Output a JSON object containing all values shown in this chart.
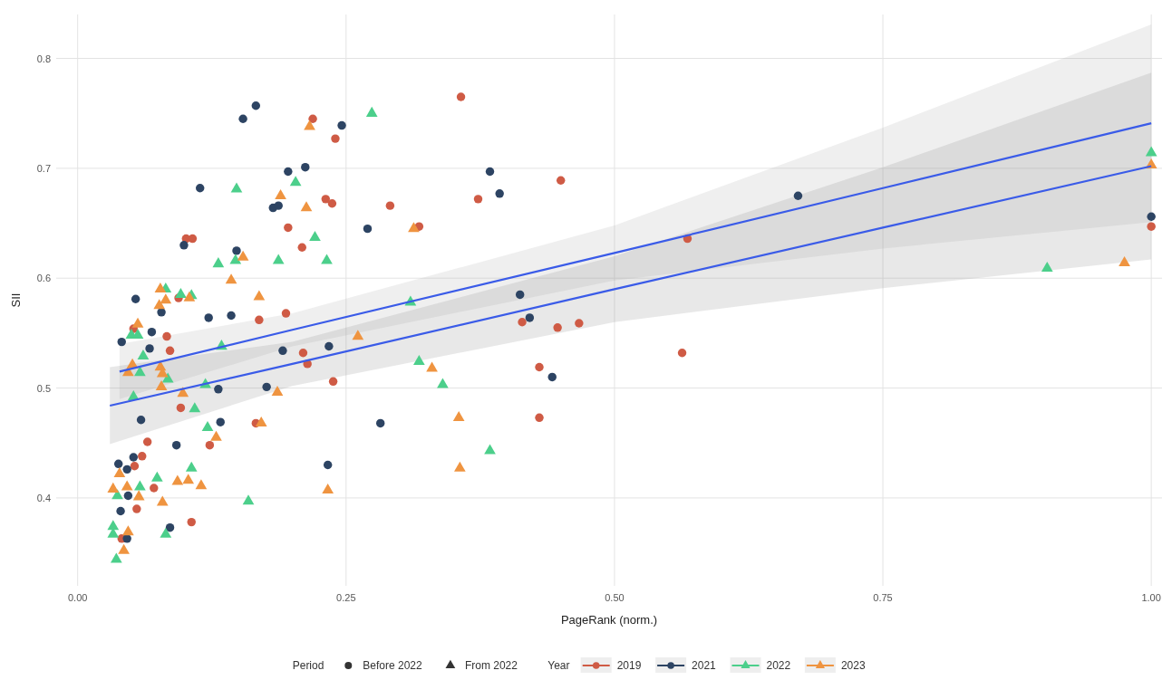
{
  "chart_data": {
    "type": "scatter",
    "xlabel": "PageRank (norm.)",
    "ylabel": "SII",
    "legend_title": "Year",
    "legend": "bottom",
    "grid": true,
    "xlim": [
      -0.02,
      1.01
    ],
    "xticks": [
      {
        "value": 0,
        "label": "0.00"
      },
      {
        "value": 0.25,
        "label": "0.25"
      },
      {
        "value": 0.5,
        "label": "0.50"
      },
      {
        "value": 0.75,
        "label": "0.75"
      },
      {
        "value": 1,
        "label": "1.00"
      }
    ],
    "ylim": [
      0.32,
      0.84
    ],
    "yticks": [
      0.4,
      0.5,
      0.6,
      0.7,
      0.8
    ],
    "annotations": [
      "Period",
      "Before 2022",
      "From 2022"
    ],
    "series": [
      {
        "name": "2019",
        "color": "#cf5b45",
        "marker": "circle",
        "x": [
          0.219,
          0.24,
          0.231,
          0.237,
          0.291,
          0.318,
          0.196,
          0.209,
          0.357,
          0.373,
          0.169,
          0.194,
          0.21,
          0.214,
          0.238,
          0.166,
          0.45,
          0.568,
          1.0,
          0.414,
          0.447,
          0.467,
          0.563,
          0.43,
          0.43,
          0.101,
          0.107,
          0.094,
          0.052,
          0.083,
          0.086,
          0.096,
          0.123,
          0.065,
          0.06,
          0.053,
          0.071,
          0.055,
          0.106,
          0.041
        ],
        "values": [
          0.745,
          0.727,
          0.672,
          0.668,
          0.666,
          0.647,
          0.646,
          0.628,
          0.765,
          0.672,
          0.562,
          0.568,
          0.532,
          0.522,
          0.506,
          0.468,
          0.689,
          0.636,
          0.647,
          0.56,
          0.555,
          0.559,
          0.532,
          0.519,
          0.473,
          0.636,
          0.636,
          0.582,
          0.554,
          0.547,
          0.534,
          0.482,
          0.448,
          0.451,
          0.438,
          0.429,
          0.409,
          0.39,
          0.378,
          0.363
        ]
      },
      {
        "name": "2021",
        "color": "#2d4463",
        "marker": "circle",
        "x": [
          0.166,
          0.246,
          0.196,
          0.212,
          0.182,
          0.187,
          0.27,
          0.384,
          0.393,
          0.191,
          0.234,
          0.176,
          0.282,
          0.233,
          0.671,
          1.0,
          0.412,
          0.421,
          0.442,
          0.154,
          0.114,
          0.099,
          0.148,
          0.054,
          0.078,
          0.122,
          0.143,
          0.069,
          0.041,
          0.067,
          0.131,
          0.059,
          0.133,
          0.092,
          0.038,
          0.052,
          0.046,
          0.047,
          0.04,
          0.086,
          0.046
        ],
        "values": [
          0.757,
          0.739,
          0.697,
          0.701,
          0.664,
          0.666,
          0.645,
          0.697,
          0.677,
          0.534,
          0.538,
          0.501,
          0.468,
          0.43,
          0.675,
          0.656,
          0.585,
          0.564,
          0.51,
          0.745,
          0.682,
          0.63,
          0.625,
          0.581,
          0.569,
          0.564,
          0.566,
          0.551,
          0.542,
          0.536,
          0.499,
          0.471,
          0.469,
          0.448,
          0.431,
          0.437,
          0.426,
          0.402,
          0.388,
          0.373,
          0.363
        ]
      },
      {
        "name": "2022",
        "color": "#4ccf8b",
        "marker": "triangle",
        "x": [
          0.274,
          0.203,
          0.221,
          0.187,
          0.232,
          0.31,
          0.318,
          0.34,
          0.384,
          1.0,
          0.903,
          0.148,
          0.147,
          0.131,
          0.082,
          0.096,
          0.106,
          0.05,
          0.056,
          0.134,
          0.061,
          0.058,
          0.084,
          0.052,
          0.119,
          0.109,
          0.121,
          0.106,
          0.074,
          0.037,
          0.058,
          0.159,
          0.082,
          0.033,
          0.033,
          0.036
        ],
        "values": [
          0.75,
          0.687,
          0.637,
          0.616,
          0.616,
          0.578,
          0.524,
          0.503,
          0.443,
          0.714,
          0.609,
          0.681,
          0.616,
          0.613,
          0.59,
          0.585,
          0.584,
          0.548,
          0.548,
          0.538,
          0.529,
          0.514,
          0.508,
          0.492,
          0.503,
          0.481,
          0.464,
          0.427,
          0.418,
          0.402,
          0.41,
          0.397,
          0.367,
          0.374,
          0.367,
          0.344
        ]
      },
      {
        "name": "2023",
        "color": "#ef9440",
        "marker": "triangle",
        "x": [
          0.216,
          0.189,
          0.213,
          0.313,
          0.169,
          0.261,
          0.186,
          0.33,
          0.171,
          0.355,
          0.356,
          0.233,
          1.0,
          0.975,
          0.154,
          0.143,
          0.077,
          0.104,
          0.076,
          0.082,
          0.056,
          0.051,
          0.047,
          0.077,
          0.079,
          0.078,
          0.098,
          0.129,
          0.039,
          0.093,
          0.103,
          0.115,
          0.033,
          0.046,
          0.057,
          0.079,
          0.047,
          0.043
        ],
        "values": [
          0.738,
          0.675,
          0.664,
          0.645,
          0.583,
          0.547,
          0.496,
          0.518,
          0.468,
          0.473,
          0.427,
          0.407,
          0.703,
          0.614,
          0.619,
          0.598,
          0.59,
          0.582,
          0.575,
          0.58,
          0.558,
          0.521,
          0.514,
          0.519,
          0.513,
          0.501,
          0.495,
          0.455,
          0.422,
          0.415,
          0.416,
          0.411,
          0.408,
          0.41,
          0.401,
          0.396,
          0.369,
          0.352
        ]
      },
      {
        "type": "line",
        "color": "#3a5be8",
        "marker": "none",
        "x": [
          0.039,
          0.2,
          0.5,
          0.75,
          1.0
        ],
        "values": [
          0.515,
          0.553,
          0.623,
          0.682,
          0.741
        ],
        "lower": [
          0.49,
          0.538,
          0.598,
          0.627,
          0.651
        ],
        "upper": [
          0.54,
          0.568,
          0.648,
          0.737,
          0.831
        ]
      },
      {
        "type": "line",
        "color": "#3a5be8",
        "marker": "none",
        "x": [
          0.03,
          0.2,
          0.5,
          0.75,
          1.0
        ],
        "values": [
          0.484,
          0.522,
          0.59,
          0.646,
          0.702
        ],
        "lower": [
          0.449,
          0.502,
          0.56,
          0.591,
          0.617
        ],
        "upper": [
          0.519,
          0.542,
          0.62,
          0.701,
          0.787
        ]
      }
    ]
  }
}
